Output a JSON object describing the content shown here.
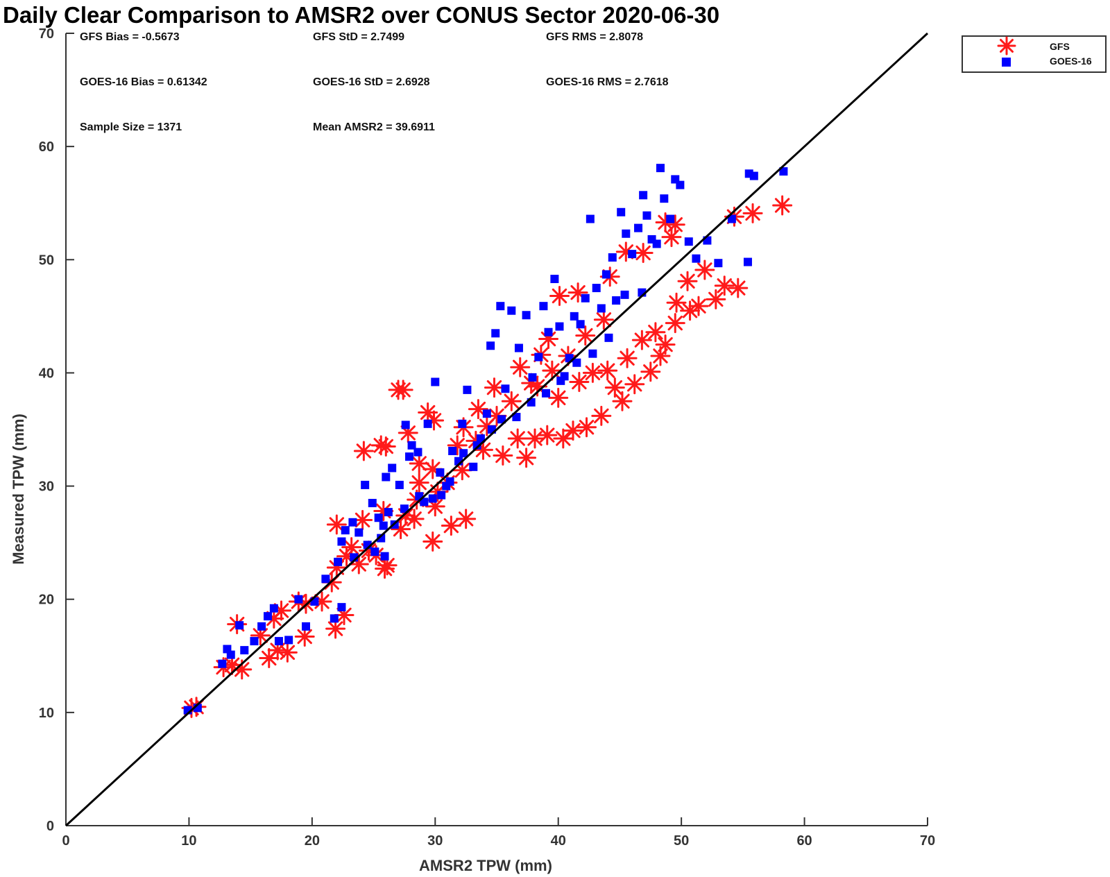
{
  "colors": {
    "gfs": "#ff1a1a",
    "goes": "#0000ff",
    "one_to_one": "#000000",
    "axis": "#333333"
  },
  "stats": [
    "GFS Bias = -0.5673",
    "GFS StD = 2.7499",
    "GFS RMS = 2.8078",
    "GOES-16 Bias = 0.61342",
    "GOES-16 StD = 2.6928",
    "GOES-16 RMS = 2.7618",
    "Sample Size = 1371",
    "Mean AMSR2 = 39.6911"
  ],
  "chart_data": {
    "type": "scatter",
    "title": "Daily Clear Comparison to AMSR2 over CONUS Sector 2020-06-30",
    "xlabel": "AMSR2 TPW (mm)",
    "ylabel": "Measured TPW (mm)",
    "xlim": [
      0,
      70
    ],
    "ylim": [
      0,
      70
    ],
    "xticks": [
      "0",
      "10",
      "20",
      "30",
      "40",
      "50",
      "60",
      "70"
    ],
    "yticks": [
      "0",
      "10",
      "20",
      "30",
      "40",
      "50",
      "60",
      "70"
    ],
    "grid": false,
    "legend_position": "outside-top-right",
    "reference_line": {
      "from": [
        0,
        0
      ],
      "to": [
        70,
        70
      ]
    },
    "series": [
      {
        "name": "GFS",
        "marker": "asterisk",
        "color": "#ff1a1a",
        "points": [
          [
            10.2,
            10.4
          ],
          [
            10.6,
            10.5
          ],
          [
            12.8,
            14.0
          ],
          [
            13.5,
            14.2
          ],
          [
            14.3,
            13.8
          ],
          [
            13.9,
            17.8
          ],
          [
            16.5,
            14.8
          ],
          [
            18.0,
            15.3
          ],
          [
            17.2,
            15.5
          ],
          [
            19.4,
            16.7
          ],
          [
            21.9,
            17.4
          ],
          [
            22.6,
            18.6
          ],
          [
            20.8,
            19.8
          ],
          [
            15.8,
            16.8
          ],
          [
            16.9,
            18.3
          ],
          [
            17.5,
            19.0
          ],
          [
            18.9,
            19.8
          ],
          [
            22.0,
            22.8
          ],
          [
            22.0,
            26.6
          ],
          [
            22.8,
            23.8
          ],
          [
            24.6,
            24.3
          ],
          [
            25.9,
            22.7
          ],
          [
            26.1,
            23.0
          ],
          [
            25.2,
            23.9
          ],
          [
            24.1,
            27.0
          ],
          [
            25.8,
            27.8
          ],
          [
            27.2,
            26.2
          ],
          [
            28.3,
            27.1
          ],
          [
            29.8,
            25.1
          ],
          [
            31.3,
            26.5
          ],
          [
            32.5,
            27.1
          ],
          [
            30.0,
            28.2
          ],
          [
            27.0,
            38.5
          ],
          [
            27.4,
            38.5
          ],
          [
            28.7,
            32.0
          ],
          [
            29.4,
            36.5
          ],
          [
            29.9,
            35.8
          ],
          [
            24.2,
            33.1
          ],
          [
            25.6,
            33.6
          ],
          [
            26.0,
            33.5
          ],
          [
            27.8,
            34.7
          ],
          [
            28.7,
            30.3
          ],
          [
            29.8,
            31.5
          ],
          [
            31.8,
            33.6
          ],
          [
            32.3,
            35.2
          ],
          [
            33.5,
            36.8
          ],
          [
            34.8,
            38.7
          ],
          [
            33.3,
            34.0
          ],
          [
            35.5,
            32.7
          ],
          [
            36.7,
            34.2
          ],
          [
            37.4,
            32.5
          ],
          [
            38.1,
            34.2
          ],
          [
            39.1,
            34.5
          ],
          [
            40.4,
            34.2
          ],
          [
            41.2,
            34.9
          ],
          [
            42.3,
            35.2
          ],
          [
            43.5,
            36.2
          ],
          [
            45.2,
            37.5
          ],
          [
            44.6,
            38.7
          ],
          [
            46.2,
            39.0
          ],
          [
            47.5,
            40.1
          ],
          [
            48.3,
            41.5
          ],
          [
            48.7,
            42.5
          ],
          [
            49.5,
            44.4
          ],
          [
            50.7,
            45.5
          ],
          [
            51.4,
            45.9
          ],
          [
            52.8,
            46.5
          ],
          [
            53.5,
            47.7
          ],
          [
            54.6,
            47.5
          ],
          [
            54.3,
            53.8
          ],
          [
            55.8,
            54.1
          ],
          [
            58.2,
            54.8
          ],
          [
            49.2,
            52.0
          ],
          [
            49.5,
            53.1
          ],
          [
            48.7,
            53.3
          ],
          [
            45.5,
            50.7
          ],
          [
            44.2,
            48.5
          ],
          [
            46.9,
            50.6
          ],
          [
            40.1,
            46.8
          ],
          [
            41.6,
            47.1
          ],
          [
            39.2,
            43.0
          ],
          [
            38.6,
            41.6
          ],
          [
            36.9,
            40.5
          ],
          [
            38.3,
            38.8
          ],
          [
            40.0,
            37.8
          ],
          [
            41.7,
            39.2
          ],
          [
            42.8,
            40.0
          ],
          [
            44.0,
            40.2
          ],
          [
            45.6,
            41.3
          ],
          [
            46.8,
            42.9
          ],
          [
            47.9,
            43.6
          ],
          [
            49.6,
            46.2
          ],
          [
            50.5,
            48.1
          ],
          [
            51.9,
            49.1
          ],
          [
            43.7,
            44.7
          ],
          [
            42.2,
            43.3
          ],
          [
            40.8,
            41.5
          ],
          [
            39.5,
            40.2
          ],
          [
            37.8,
            39.1
          ],
          [
            36.2,
            37.5
          ],
          [
            35.0,
            36.2
          ],
          [
            34.2,
            35.3
          ],
          [
            33.9,
            33.2
          ],
          [
            32.2,
            31.4
          ],
          [
            31.0,
            30.3
          ],
          [
            30.2,
            29.5
          ],
          [
            28.5,
            28.8
          ],
          [
            27.6,
            27.4
          ],
          [
            23.8,
            23.1
          ],
          [
            23.2,
            24.6
          ],
          [
            21.6,
            21.5
          ],
          [
            19.5,
            19.6
          ]
        ]
      },
      {
        "name": "GOES-16",
        "marker": "square",
        "color": "#0000ff",
        "points": [
          [
            9.9,
            10.2
          ],
          [
            10.7,
            10.4
          ],
          [
            12.7,
            14.3
          ],
          [
            13.1,
            15.6
          ],
          [
            13.4,
            15.1
          ],
          [
            14.1,
            17.7
          ],
          [
            14.5,
            15.5
          ],
          [
            15.3,
            16.3
          ],
          [
            15.9,
            17.6
          ],
          [
            16.4,
            18.5
          ],
          [
            16.9,
            19.2
          ],
          [
            17.3,
            16.3
          ],
          [
            18.1,
            16.4
          ],
          [
            18.9,
            20.0
          ],
          [
            19.5,
            17.6
          ],
          [
            20.2,
            19.8
          ],
          [
            21.1,
            21.8
          ],
          [
            21.8,
            18.3
          ],
          [
            22.4,
            19.3
          ],
          [
            22.1,
            23.3
          ],
          [
            22.4,
            25.1
          ],
          [
            22.7,
            26.1
          ],
          [
            23.3,
            26.8
          ],
          [
            23.8,
            25.9
          ],
          [
            24.3,
            30.1
          ],
          [
            24.9,
            28.5
          ],
          [
            25.4,
            27.2
          ],
          [
            25.8,
            26.5
          ],
          [
            26.2,
            27.7
          ],
          [
            25.1,
            24.2
          ],
          [
            25.9,
            23.8
          ],
          [
            26.0,
            30.8
          ],
          [
            26.5,
            31.6
          ],
          [
            27.1,
            30.1
          ],
          [
            27.9,
            32.6
          ],
          [
            28.6,
            33.0
          ],
          [
            27.6,
            35.4
          ],
          [
            28.1,
            33.6
          ],
          [
            28.7,
            29.1
          ],
          [
            29.4,
            35.5
          ],
          [
            30.0,
            39.2
          ],
          [
            29.8,
            28.9
          ],
          [
            30.4,
            31.2
          ],
          [
            30.9,
            30.0
          ],
          [
            31.4,
            33.1
          ],
          [
            31.9,
            32.2
          ],
          [
            32.2,
            35.5
          ],
          [
            32.6,
            38.5
          ],
          [
            33.1,
            31.7
          ],
          [
            33.7,
            34.2
          ],
          [
            34.2,
            36.4
          ],
          [
            34.5,
            42.4
          ],
          [
            34.9,
            43.5
          ],
          [
            35.3,
            45.9
          ],
          [
            35.7,
            38.6
          ],
          [
            36.2,
            45.5
          ],
          [
            36.8,
            42.2
          ],
          [
            37.4,
            45.1
          ],
          [
            37.9,
            39.6
          ],
          [
            38.4,
            41.4
          ],
          [
            38.8,
            45.9
          ],
          [
            39.2,
            43.6
          ],
          [
            39.7,
            48.3
          ],
          [
            40.1,
            44.1
          ],
          [
            40.5,
            39.7
          ],
          [
            40.9,
            41.3
          ],
          [
            41.3,
            45.0
          ],
          [
            41.8,
            44.3
          ],
          [
            42.2,
            46.6
          ],
          [
            42.6,
            53.6
          ],
          [
            43.1,
            47.5
          ],
          [
            43.5,
            45.7
          ],
          [
            43.9,
            48.7
          ],
          [
            44.4,
            50.2
          ],
          [
            44.7,
            46.4
          ],
          [
            45.1,
            54.2
          ],
          [
            45.5,
            52.3
          ],
          [
            46.0,
            50.5
          ],
          [
            46.5,
            52.8
          ],
          [
            46.9,
            55.7
          ],
          [
            47.2,
            53.9
          ],
          [
            47.6,
            51.8
          ],
          [
            48.0,
            51.4
          ],
          [
            48.3,
            58.1
          ],
          [
            48.6,
            55.4
          ],
          [
            49.1,
            53.6
          ],
          [
            49.5,
            57.1
          ],
          [
            49.9,
            56.6
          ],
          [
            50.6,
            51.6
          ],
          [
            51.2,
            50.1
          ],
          [
            52.1,
            51.7
          ],
          [
            53.0,
            49.7
          ],
          [
            54.1,
            53.6
          ],
          [
            55.4,
            49.8
          ],
          [
            55.5,
            57.6
          ],
          [
            55.9,
            57.4
          ],
          [
            58.3,
            57.8
          ],
          [
            46.8,
            47.1
          ],
          [
            45.4,
            46.9
          ],
          [
            44.1,
            43.1
          ],
          [
            42.8,
            41.7
          ],
          [
            41.5,
            40.9
          ],
          [
            40.2,
            39.3
          ],
          [
            39.0,
            38.2
          ],
          [
            37.8,
            37.4
          ],
          [
            36.6,
            36.1
          ],
          [
            35.4,
            35.9
          ],
          [
            34.6,
            35.0
          ],
          [
            33.4,
            33.6
          ],
          [
            32.3,
            32.9
          ],
          [
            31.2,
            30.4
          ],
          [
            30.5,
            29.2
          ],
          [
            29.1,
            28.6
          ],
          [
            27.5,
            28.0
          ],
          [
            26.7,
            26.6
          ],
          [
            25.6,
            25.4
          ],
          [
            24.5,
            24.8
          ],
          [
            23.4,
            23.7
          ]
        ]
      }
    ]
  }
}
